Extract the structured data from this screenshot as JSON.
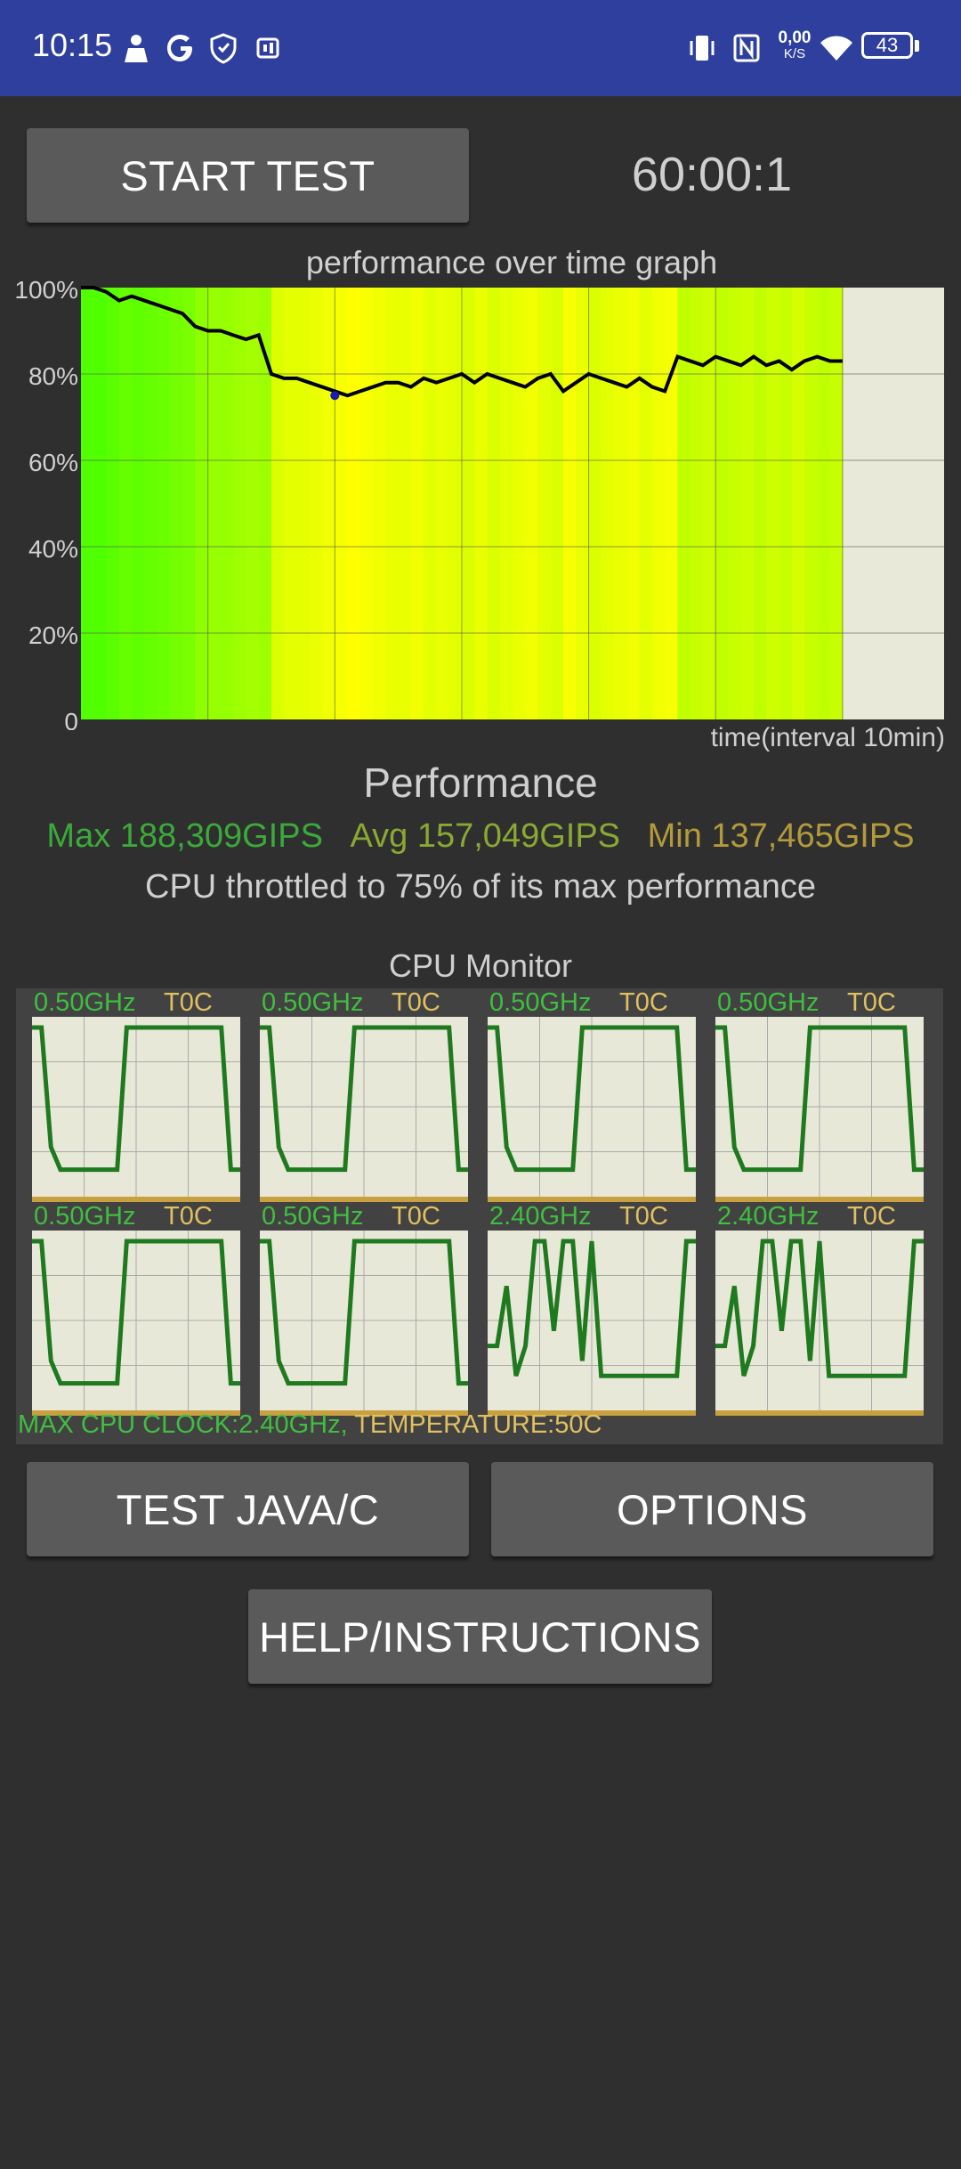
{
  "status_bar": {
    "time": "10:15",
    "left_icons": [
      "person-icon",
      "google-icon",
      "shield-icon",
      "nfc-pay-icon"
    ],
    "net_speed_value": "0,00",
    "net_speed_unit": "K/S",
    "battery": "43",
    "right_icons": [
      "vibrate-icon",
      "nfc-icon",
      "net-speed-icon",
      "wifi-icon",
      "battery-icon"
    ]
  },
  "controls": {
    "start_test": "START TEST",
    "timer": "60:00:1",
    "test_java_c": "TEST JAVA/C",
    "options": "OPTIONS",
    "help": "HELP/INSTRUCTIONS"
  },
  "graph": {
    "title": "performance over time graph",
    "x_label": "time(interval 10min)",
    "y_ticks": [
      "100%",
      "80%",
      "60%",
      "40%",
      "20%",
      "0"
    ]
  },
  "chart_data": {
    "type": "line",
    "title": "performance over time graph",
    "xlabel": "time(interval 10min)",
    "ylabel": "",
    "ylim": [
      0,
      100
    ],
    "x_unit": "minutes",
    "xlim": [
      0,
      68
    ],
    "grid": true,
    "series": [
      {
        "x": [
          0,
          1,
          2,
          3,
          4,
          5,
          6,
          7,
          8,
          9,
          10,
          11,
          12,
          13,
          14,
          15,
          16,
          17,
          18,
          19,
          20,
          21,
          22,
          23,
          24,
          25,
          26,
          27,
          28,
          29,
          30,
          31,
          32,
          33,
          34,
          35,
          36,
          37,
          38,
          39,
          40,
          41,
          42,
          43,
          44,
          45,
          46,
          47,
          48,
          49,
          50,
          51,
          52,
          53,
          54,
          55,
          56,
          57,
          58,
          59,
          60
        ],
        "values": [
          100,
          100,
          99,
          97,
          98,
          97,
          96,
          95,
          94,
          91,
          90,
          90,
          89,
          88,
          89,
          80,
          79,
          79,
          78,
          77,
          76,
          75,
          76,
          77,
          78,
          78,
          77,
          79,
          78,
          79,
          80,
          78,
          80,
          79,
          78,
          77,
          79,
          80,
          76,
          78,
          80,
          79,
          78,
          77,
          79,
          77,
          76,
          84,
          83,
          82,
          84,
          83,
          82,
          84,
          82,
          83,
          81,
          83,
          84,
          83,
          83
        ]
      }
    ],
    "min_point": {
      "x": 20,
      "y": 75
    }
  },
  "performance": {
    "heading": "Performance",
    "max": "Max 188,309GIPS",
    "avg": "Avg 157,049GIPS",
    "min": "Min 137,465GIPS",
    "throttle_text": "CPU throttled to 75% of its max performance",
    "colors": {
      "max": "#3aaa3a",
      "avg": "#8aa832",
      "min": "#b39a3a"
    }
  },
  "cpu_monitor": {
    "title": "CPU Monitor",
    "cores": [
      {
        "freq": "0.50GHz",
        "temp": "T0C",
        "values": [
          100,
          100,
          20,
          5,
          5,
          5,
          5,
          5,
          5,
          5,
          100,
          100,
          100,
          100,
          100,
          100,
          100,
          100,
          100,
          100,
          100,
          5,
          5
        ]
      },
      {
        "freq": "0.50GHz",
        "temp": "T0C",
        "values": [
          100,
          100,
          20,
          5,
          5,
          5,
          5,
          5,
          5,
          5,
          100,
          100,
          100,
          100,
          100,
          100,
          100,
          100,
          100,
          100,
          100,
          5,
          5
        ]
      },
      {
        "freq": "0.50GHz",
        "temp": "T0C",
        "values": [
          100,
          100,
          20,
          5,
          5,
          5,
          5,
          5,
          5,
          5,
          100,
          100,
          100,
          100,
          100,
          100,
          100,
          100,
          100,
          100,
          100,
          5,
          5
        ]
      },
      {
        "freq": "0.50GHz",
        "temp": "T0C",
        "values": [
          100,
          100,
          20,
          5,
          5,
          5,
          5,
          5,
          5,
          5,
          100,
          100,
          100,
          100,
          100,
          100,
          100,
          100,
          100,
          100,
          100,
          5,
          5
        ]
      },
      {
        "freq": "0.50GHz",
        "temp": "T0C",
        "values": [
          100,
          100,
          20,
          5,
          5,
          5,
          5,
          5,
          5,
          5,
          100,
          100,
          100,
          100,
          100,
          100,
          100,
          100,
          100,
          100,
          100,
          5,
          5
        ]
      },
      {
        "freq": "0.50GHz",
        "temp": "T0C",
        "values": [
          100,
          100,
          20,
          5,
          5,
          5,
          5,
          5,
          5,
          5,
          100,
          100,
          100,
          100,
          100,
          100,
          100,
          100,
          100,
          100,
          100,
          5,
          5
        ]
      },
      {
        "freq": "2.40GHz",
        "temp": "T0C",
        "values": [
          30,
          30,
          70,
          10,
          30,
          100,
          100,
          40,
          100,
          100,
          20,
          100,
          10,
          10,
          10,
          10,
          10,
          10,
          10,
          10,
          10,
          100,
          100
        ]
      },
      {
        "freq": "2.40GHz",
        "temp": "T0C",
        "values": [
          30,
          30,
          70,
          10,
          30,
          100,
          100,
          40,
          100,
          100,
          20,
          100,
          10,
          10,
          10,
          10,
          10,
          10,
          10,
          10,
          10,
          100,
          100
        ]
      }
    ],
    "summary_clock": "MAX CPU CLOCK:2.40GHz,",
    "summary_temp": "TEMPERATURE:50C",
    "colors": {
      "freq": "#3fbf3f",
      "temp": "#e0c060",
      "line": "#1f7a1f",
      "plot_bg": "#e8e8d8",
      "base": "#c8a040"
    }
  }
}
